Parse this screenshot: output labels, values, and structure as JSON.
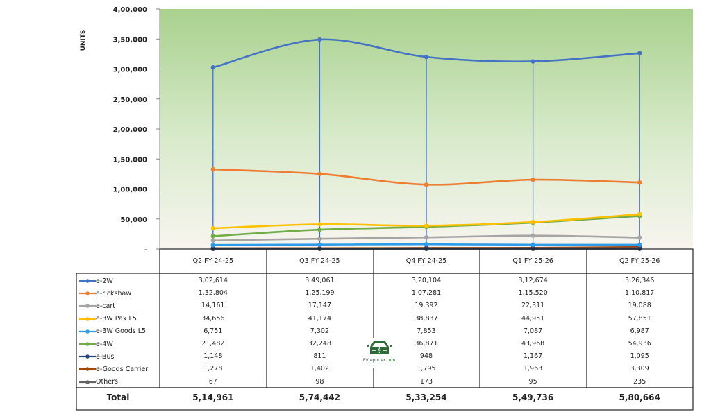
{
  "chart_data": {
    "type": "line",
    "ylabel": "UNITS",
    "ylim": [
      0,
      400000
    ],
    "yticks": [
      "-",
      "50,000",
      "1,00,000",
      "1,50,000",
      "2,00,000",
      "2,50,000",
      "3,00,000",
      "3,50,000",
      "4,00,000"
    ],
    "ytick_values": [
      0,
      50000,
      100000,
      150000,
      200000,
      250000,
      300000,
      350000,
      400000
    ],
    "categories": [
      "Q2 FY 24-25",
      "Q3 FY 24-25",
      "Q4 FY 24-25",
      "Q1 FY 25-26",
      "Q2 FY 25-26"
    ],
    "background": "green gradient",
    "series": [
      {
        "name": "e-2W",
        "color": "#4472C4",
        "values": [
          302614,
          349061,
          320104,
          312674,
          326346
        ],
        "labels": [
          "3,02,614",
          "3,49,061",
          "3,20,104",
          "3,12,674",
          "3,26,346"
        ]
      },
      {
        "name": "e-rickshaw",
        "color": "#ED7D31",
        "values": [
          132804,
          125199,
          107281,
          115520,
          110817
        ],
        "labels": [
          "1,32,804",
          "1,25,199",
          "1,07,281",
          "1,15,520",
          "1,10,817"
        ]
      },
      {
        "name": "e-cart",
        "color": "#A5A5A5",
        "values": [
          14161,
          17147,
          19392,
          22311,
          19088
        ],
        "labels": [
          "14,161",
          "17,147",
          "19,392",
          "22,311",
          "19,088"
        ]
      },
      {
        "name": "e-3W Pax L5",
        "color": "#FFC000",
        "values": [
          34656,
          41174,
          38837,
          44951,
          57851
        ],
        "labels": [
          "34,656",
          "41,174",
          "38,837",
          "44,951",
          "57,851"
        ]
      },
      {
        "name": "e-3W Goods L5",
        "color": "#2E9BE8",
        "values": [
          6751,
          7302,
          7853,
          7087,
          6987
        ],
        "labels": [
          "6,751",
          "7,302",
          "7,853",
          "7,087",
          "6,987"
        ]
      },
      {
        "name": "e-4W",
        "color": "#70AD47",
        "values": [
          21482,
          32248,
          36871,
          43968,
          54936
        ],
        "labels": [
          "21,482",
          "32,248",
          "36,871",
          "43,968",
          "54,936"
        ]
      },
      {
        "name": "e-Bus",
        "color": "#264478",
        "values": [
          1148,
          811,
          948,
          1167,
          1095
        ],
        "labels": [
          "1,148",
          "811",
          "948",
          "1,167",
          "1,095"
        ]
      },
      {
        "name": "e-Goods Carrier",
        "color": "#9E480E",
        "values": [
          1278,
          1402,
          1795,
          1963,
          3309
        ],
        "labels": [
          "1,278",
          "1,402",
          "1,795",
          "1,963",
          "3,309"
        ]
      },
      {
        "name": "Others",
        "color": "#636363",
        "values": [
          67,
          98,
          173,
          95,
          235
        ],
        "labels": [
          "67",
          "98",
          "173",
          "95",
          "235"
        ]
      }
    ],
    "total": {
      "label": "Total",
      "values": [
        "5,14,961",
        "5,74,442",
        "5,33,254",
        "5,49,736",
        "5,80,664"
      ]
    }
  },
  "logo": {
    "text": "EVreporter.com"
  }
}
